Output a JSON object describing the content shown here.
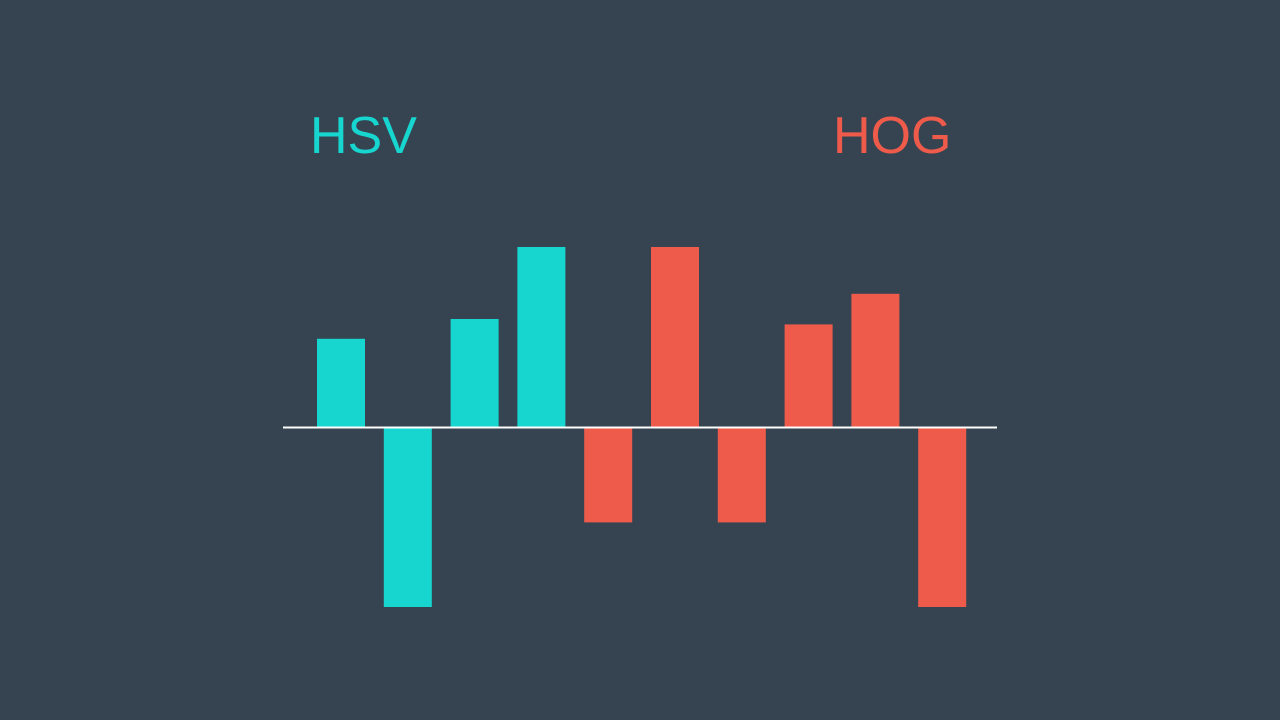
{
  "colors": {
    "background": "#364452",
    "hsv": "#17d6cf",
    "hog": "#ef5b4b",
    "baseline": "#ffffff"
  },
  "chart_data": {
    "type": "bar",
    "axes_visible": false,
    "grid": false,
    "baseline_value": 0,
    "ylim": [
      -1,
      1
    ],
    "series": [
      {
        "name": "HSV",
        "color": "#17d6cf",
        "values": [
          0.49,
          -1.0,
          0.6,
          1.0
        ]
      },
      {
        "name": "HOG",
        "color": "#ef5b4b",
        "values": [
          -0.53,
          1.0,
          -0.53,
          0.57,
          0.74,
          -1.0
        ]
      }
    ]
  }
}
